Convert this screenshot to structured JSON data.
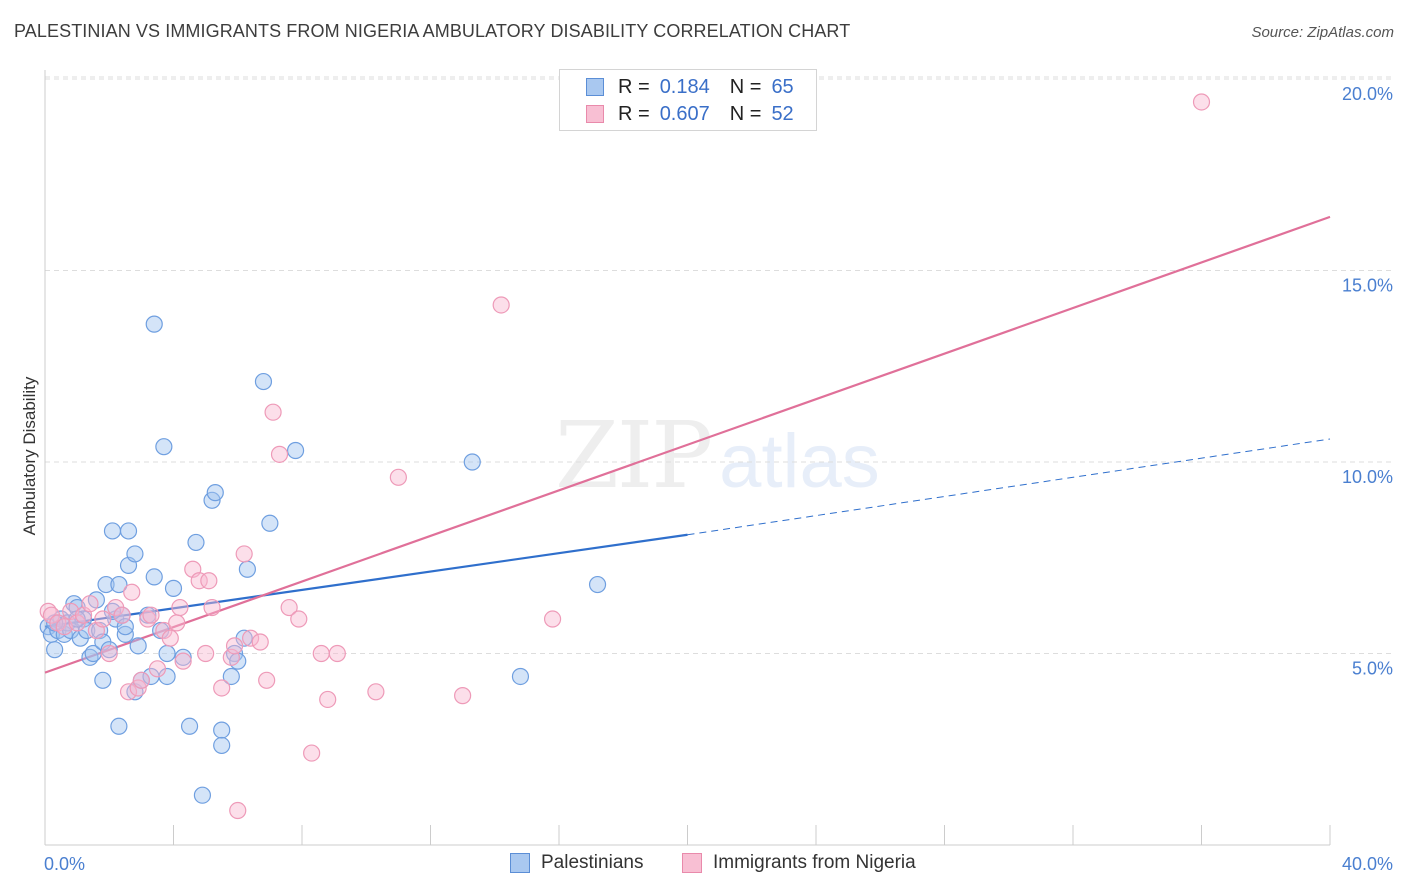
{
  "header": {
    "title": "PALESTINIAN VS IMMIGRANTS FROM NIGERIA AMBULATORY DISABILITY CORRELATION CHART",
    "source": "Source: ZipAtlas.com"
  },
  "legend_top": {
    "rows": [
      {
        "r_label": "R =",
        "r_value": "0.184",
        "n_label": "N =",
        "n_value": "65",
        "color": "#a9c8f0",
        "border": "#5b8ed6"
      },
      {
        "r_label": "R =",
        "r_value": "0.607",
        "n_label": "N =",
        "n_value": "52",
        "color": "#f8bfd3",
        "border": "#e98aab"
      }
    ]
  },
  "legend_bottom": {
    "items": [
      {
        "label": "Palestinians"
      },
      {
        "label": "Immigrants from Nigeria"
      }
    ]
  },
  "watermark": {
    "zip": "ZIP",
    "atlas": "atlas"
  },
  "chart_data": {
    "type": "scatter",
    "xlabel": "",
    "ylabel": "Ambulatory Disability",
    "xlim": [
      0,
      40
    ],
    "ylim": [
      0,
      20.5
    ],
    "x_tick_labels": [
      "0.0%",
      "40.0%"
    ],
    "y_ticks": [
      5,
      10,
      15,
      20
    ],
    "y_tick_labels": [
      "5.0%",
      "10.0%",
      "15.0%",
      "20.0%"
    ],
    "grid": true,
    "legend_position": "top-center",
    "series": [
      {
        "name": "Palestinians",
        "color": "#6f9fe0",
        "line_color": "#2f6fcc",
        "r": 0.184,
        "n": 65,
        "trend": {
          "x0": 0,
          "y0": 5.7,
          "x1": 20,
          "y1": 8.1,
          "dashed_to_x": 40,
          "dashed_to_y": 10.6
        },
        "points": [
          [
            0.1,
            5.7
          ],
          [
            0.2,
            5.5
          ],
          [
            0.3,
            5.1
          ],
          [
            0.4,
            5.6
          ],
          [
            0.5,
            5.9
          ],
          [
            0.6,
            5.5
          ],
          [
            0.7,
            5.8
          ],
          [
            0.8,
            5.6
          ],
          [
            0.9,
            6.3
          ],
          [
            1.0,
            6.2
          ],
          [
            1.1,
            5.4
          ],
          [
            1.2,
            5.9
          ],
          [
            1.3,
            5.6
          ],
          [
            1.4,
            4.9
          ],
          [
            1.5,
            5.0
          ],
          [
            1.6,
            6.4
          ],
          [
            1.7,
            5.6
          ],
          [
            1.8,
            5.3
          ],
          [
            1.8,
            4.3
          ],
          [
            1.9,
            6.8
          ],
          [
            2.0,
            5.1
          ],
          [
            2.1,
            8.2
          ],
          [
            2.2,
            5.9
          ],
          [
            2.3,
            6.8
          ],
          [
            2.3,
            3.1
          ],
          [
            2.4,
            6.0
          ],
          [
            2.5,
            5.5
          ],
          [
            2.5,
            5.7
          ],
          [
            2.6,
            8.2
          ],
          [
            2.6,
            7.3
          ],
          [
            2.8,
            7.6
          ],
          [
            2.8,
            4.0
          ],
          [
            2.9,
            5.2
          ],
          [
            3.0,
            4.3
          ],
          [
            3.2,
            6.0
          ],
          [
            3.3,
            4.4
          ],
          [
            3.4,
            7.0
          ],
          [
            3.4,
            13.6
          ],
          [
            3.6,
            5.6
          ],
          [
            3.7,
            10.4
          ],
          [
            3.8,
            5.0
          ],
          [
            3.8,
            4.4
          ],
          [
            4.0,
            6.7
          ],
          [
            4.3,
            4.9
          ],
          [
            4.5,
            3.1
          ],
          [
            4.7,
            7.9
          ],
          [
            4.9,
            1.3
          ],
          [
            5.2,
            9.0
          ],
          [
            5.3,
            9.2
          ],
          [
            5.5,
            3.0
          ],
          [
            5.5,
            2.6
          ],
          [
            5.8,
            4.4
          ],
          [
            5.9,
            5.0
          ],
          [
            6.0,
            4.8
          ],
          [
            6.2,
            5.4
          ],
          [
            6.3,
            7.2
          ],
          [
            6.8,
            12.1
          ],
          [
            7.0,
            8.4
          ],
          [
            7.8,
            10.3
          ],
          [
            13.3,
            10.0
          ],
          [
            14.8,
            4.4
          ],
          [
            17.2,
            6.8
          ],
          [
            0.3,
            5.8
          ],
          [
            1.0,
            5.9
          ],
          [
            2.1,
            6.1
          ]
        ]
      },
      {
        "name": "Immigrants from Nigeria",
        "color": "#f2a0bd",
        "line_color": "#e07099",
        "r": 0.607,
        "n": 52,
        "trend": {
          "x0": 0,
          "y0": 4.5,
          "x1": 40,
          "y1": 16.4
        },
        "points": [
          [
            0.1,
            6.1
          ],
          [
            0.2,
            6.0
          ],
          [
            0.4,
            5.8
          ],
          [
            0.6,
            5.7
          ],
          [
            0.8,
            6.1
          ],
          [
            1.0,
            5.8
          ],
          [
            1.2,
            6.0
          ],
          [
            1.4,
            6.3
          ],
          [
            1.6,
            5.6
          ],
          [
            1.8,
            5.9
          ],
          [
            2.0,
            5.0
          ],
          [
            2.2,
            6.2
          ],
          [
            2.4,
            6.0
          ],
          [
            2.6,
            4.0
          ],
          [
            2.7,
            6.6
          ],
          [
            2.9,
            4.1
          ],
          [
            3.0,
            4.3
          ],
          [
            3.2,
            5.9
          ],
          [
            3.3,
            6.0
          ],
          [
            3.5,
            4.6
          ],
          [
            3.7,
            5.6
          ],
          [
            3.9,
            5.4
          ],
          [
            4.1,
            5.8
          ],
          [
            4.2,
            6.2
          ],
          [
            4.3,
            4.8
          ],
          [
            4.6,
            7.2
          ],
          [
            4.8,
            6.9
          ],
          [
            5.0,
            5.0
          ],
          [
            5.1,
            6.9
          ],
          [
            5.2,
            6.2
          ],
          [
            5.5,
            4.1
          ],
          [
            5.8,
            4.9
          ],
          [
            5.9,
            5.2
          ],
          [
            6.0,
            0.9
          ],
          [
            6.2,
            7.6
          ],
          [
            6.4,
            5.4
          ],
          [
            6.7,
            5.3
          ],
          [
            6.9,
            4.3
          ],
          [
            7.1,
            11.3
          ],
          [
            7.3,
            10.2
          ],
          [
            7.6,
            6.2
          ],
          [
            7.9,
            5.9
          ],
          [
            8.3,
            2.4
          ],
          [
            8.6,
            5.0
          ],
          [
            8.8,
            3.8
          ],
          [
            9.1,
            5.0
          ],
          [
            10.3,
            4.0
          ],
          [
            11.0,
            9.6
          ],
          [
            13.0,
            3.9
          ],
          [
            14.2,
            14.1
          ],
          [
            15.8,
            5.9
          ],
          [
            36.0,
            19.4
          ]
        ]
      }
    ]
  }
}
